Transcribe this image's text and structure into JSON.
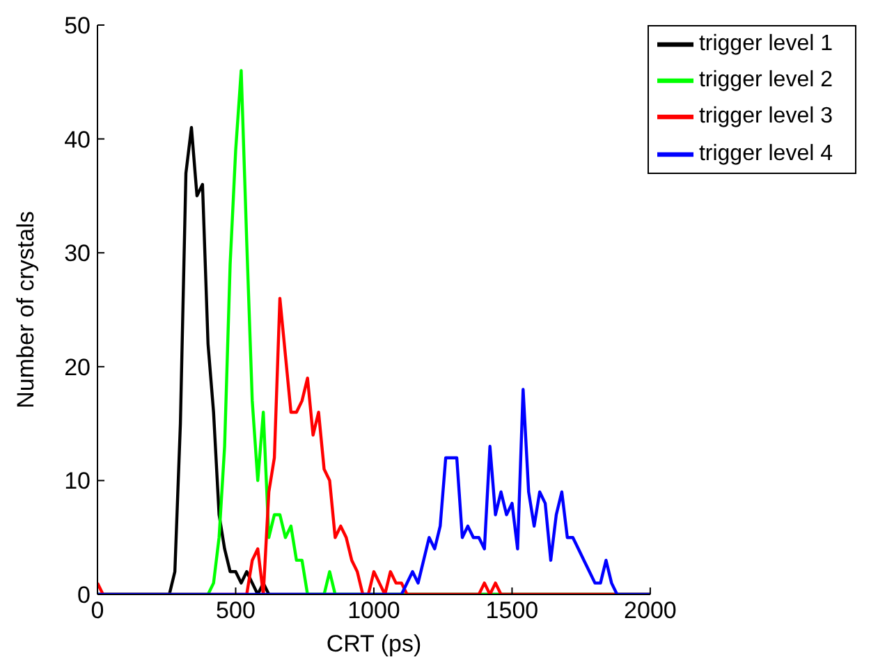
{
  "chart_data": {
    "type": "line",
    "xlabel": "CRT (ps)",
    "ylabel": "Number of crystals",
    "xlim": [
      0,
      2000
    ],
    "xticks": [
      0,
      500,
      1000,
      1500,
      2000
    ],
    "ylim": [
      0,
      50
    ],
    "yticks": [
      0,
      10,
      20,
      30,
      40,
      50
    ],
    "legend": "top right",
    "series": [
      {
        "name": "trigger level 1",
        "color": "#000000",
        "x": [
          0,
          260,
          280,
          300,
          320,
          340,
          360,
          380,
          400,
          420,
          440,
          460,
          480,
          500,
          520,
          540,
          560,
          580,
          600,
          620,
          2000
        ],
        "values": [
          0,
          0,
          2,
          15,
          37,
          41,
          35,
          36,
          22,
          16,
          7,
          4,
          2,
          2,
          1,
          2,
          1,
          0,
          1,
          0,
          0
        ]
      },
      {
        "name": "trigger level 2",
        "color": "#00ff00",
        "x": [
          0,
          400,
          420,
          440,
          460,
          480,
          500,
          520,
          540,
          560,
          580,
          600,
          620,
          640,
          660,
          680,
          700,
          720,
          740,
          760,
          820,
          840,
          860,
          2000
        ],
        "values": [
          0,
          0,
          1,
          5,
          13,
          29,
          39,
          46,
          31,
          17,
          10,
          16,
          5,
          7,
          7,
          5,
          6,
          3,
          3,
          0,
          0,
          2,
          0,
          0
        ]
      },
      {
        "name": "trigger level 3",
        "color": "#ff0000",
        "x": [
          0,
          20,
          540,
          560,
          580,
          600,
          620,
          640,
          660,
          680,
          700,
          720,
          740,
          760,
          780,
          800,
          820,
          840,
          860,
          880,
          900,
          920,
          940,
          960,
          980,
          1000,
          1020,
          1040,
          1060,
          1080,
          1100,
          1120,
          1380,
          1400,
          1420,
          1440,
          1460,
          2000
        ],
        "values": [
          1,
          0,
          0,
          3,
          4,
          0,
          9,
          12,
          26,
          21,
          16,
          16,
          17,
          19,
          14,
          16,
          11,
          10,
          5,
          6,
          5,
          3,
          2,
          0,
          0,
          2,
          1,
          0,
          2,
          1,
          1,
          0,
          0,
          1,
          0,
          1,
          0,
          0
        ]
      },
      {
        "name": "trigger level 4",
        "color": "#0000ff",
        "x": [
          0,
          1100,
          1140,
          1160,
          1180,
          1200,
          1220,
          1240,
          1260,
          1280,
          1300,
          1320,
          1340,
          1360,
          1380,
          1400,
          1420,
          1440,
          1460,
          1480,
          1500,
          1520,
          1540,
          1560,
          1580,
          1600,
          1620,
          1640,
          1660,
          1680,
          1700,
          1720,
          1740,
          1760,
          1780,
          1800,
          1820,
          1840,
          1860,
          1880,
          2000
        ],
        "values": [
          0,
          0,
          2,
          1,
          3,
          5,
          4,
          6,
          12,
          12,
          12,
          5,
          6,
          5,
          5,
          4,
          13,
          7,
          9,
          7,
          8,
          4,
          18,
          9,
          6,
          9,
          8,
          3,
          7,
          9,
          5,
          5,
          4,
          3,
          2,
          1,
          1,
          3,
          1,
          0,
          0
        ]
      }
    ]
  }
}
